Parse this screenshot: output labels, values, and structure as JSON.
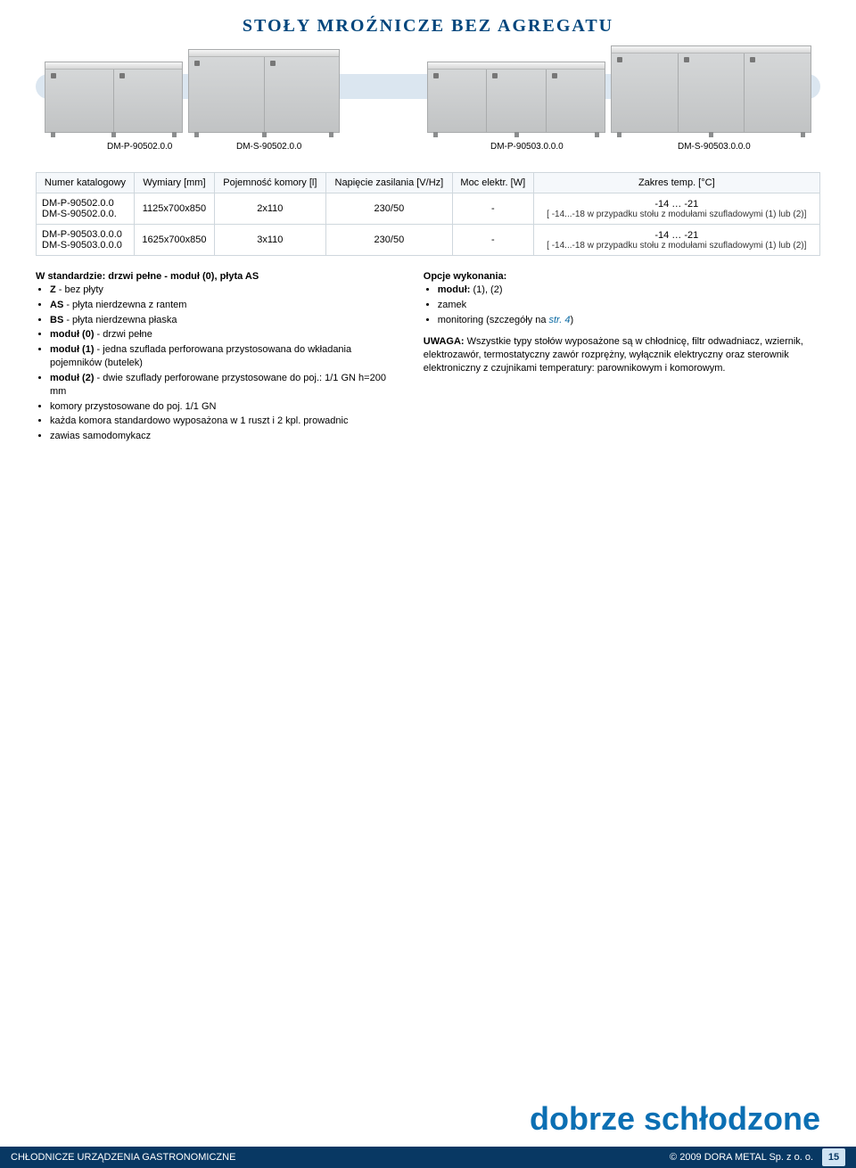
{
  "page": {
    "title": "STOŁY MROŹNICZE BEZ AGREGATU",
    "tagline": "dobrze schłodzone",
    "title_color": "#00457c",
    "tagline_color": "#0b6fb3",
    "background_color": "#ffffff",
    "footer_bg": "#083863",
    "footer_text_color": "#ffffff",
    "page_number": "15",
    "page_number_bg": "#cfe3f3"
  },
  "image_labels": {
    "a": "DM-P-90502.0.0",
    "b": "DM-S-90502.0.0",
    "c": "DM-P-90503.0.0.0",
    "d": "DM-S-90503.0.0.0"
  },
  "table": {
    "headers": {
      "katalog": "Numer katalogowy",
      "wymiary": "Wymiary [mm]",
      "pojemnosc": "Pojemność komory [l]",
      "napiecie": "Napięcie zasilania [V/Hz]",
      "moc": "Moc elektr. [W]",
      "zakres": "Zakres temp. [°C]"
    },
    "rows": [
      {
        "katalog_a": "DM-P-90502.0.0",
        "katalog_b": "DM-S-90502.0.0.",
        "wymiary": "1125x700x850",
        "pojemnosc": "2x110",
        "napiecie": "230/50",
        "moc": "-",
        "zakres_main": "-14 … -21",
        "zakres_sub": "[ -14...-18 w przypadku stołu z modułami szufladowymi (1) lub (2)]"
      },
      {
        "katalog_a": "DM-P-90503.0.0.0",
        "katalog_b": "DM-S-90503.0.0.0",
        "wymiary": "1625x700x850",
        "pojemnosc": "3x110",
        "napiecie": "230/50",
        "moc": "-",
        "zakres_main": "-14 … -21",
        "zakres_sub": "[ -14...-18 w przypadku stołu z modułami szufladowymi (1) lub (2)]"
      }
    ]
  },
  "left": {
    "heading": "W standardzie: drzwi pełne - moduł (0), płyta AS",
    "items": [
      "Z - bez płyty",
      "AS - płyta nierdzewna z rantem",
      "BS - płyta nierdzewna płaska",
      "moduł (0) - drzwi pełne",
      "moduł (1) - jedna szuflada perforowana przystosowana do wkładania pojemników (butelek)",
      "moduł (2) - dwie szuflady perforowane przystosowane do poj.: 1/1 GN h=200 mm",
      "komory przystosowane do poj. 1/1 GN",
      "każda komora standardowo wyposażona w 1 ruszt i 2 kpl. prowadnic",
      "zawias samodomykacz"
    ]
  },
  "right": {
    "heading": "Opcje wykonania:",
    "items": [
      "moduł: (1), (2)",
      "zamek"
    ],
    "monitoring_prefix": "monitoring (szczegóły na ",
    "monitoring_link": "str. 4",
    "monitoring_suffix": ")",
    "note_title": "UWAGA:",
    "note_body": " Wszystkie typy stołów wyposażone są w chłodnicę, filtr odwadniacz, wziernik, elektrozawór, termostatyczny zawór rozprężny, wyłącznik elektryczny oraz sterownik elektroniczny z czujnikami temperatury: parownikowym i komorowym."
  },
  "footer": {
    "left": "CHŁODNICZE URZĄDZENIA GASTRONOMICZNE",
    "right": "© 2009 DORA METAL Sp. z o. o."
  }
}
